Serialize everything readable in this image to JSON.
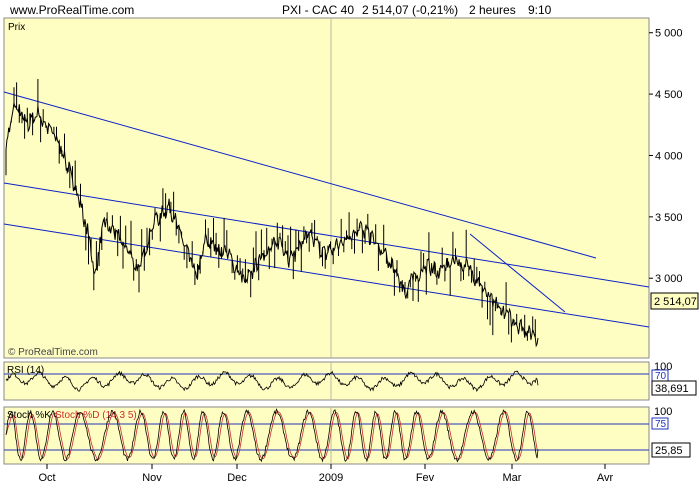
{
  "header": {
    "site": "www.ProRealTime.com",
    "title": "PXI - CAC 40",
    "quote": "2 514,07 (-0,21%)",
    "interval": "2 heures",
    "time": "9:10"
  },
  "colors": {
    "panel_bg": "#fffec2",
    "price_line": "#000000",
    "channel": "#0b22c8",
    "rsi": "#000000",
    "stoch_k": "#000000",
    "stoch_d": "#cc2b2b",
    "level_line": "#2233bb"
  },
  "main_panel": {
    "label": "Prix",
    "watermark": "© ProRealTime.com",
    "last_value_tag": "2 514,07",
    "y_ticks": [
      "5 000",
      "4 500",
      "4 000",
      "3 500",
      "3 000"
    ]
  },
  "rsi_panel": {
    "label": "RSI (14)",
    "scale_top": "100",
    "level_label": "70",
    "value_tag": "38,691"
  },
  "stoch_panel": {
    "label_k": "Stoch %K",
    "label_d": "Stoch %D (14 3 5)",
    "scale_top": "100",
    "level_label": "75",
    "value_tag": "25,85"
  },
  "x_axis": {
    "labels": [
      "Oct",
      "Nov",
      "Dec",
      "2009",
      "Fev",
      "Mar",
      "Avr"
    ]
  },
  "chart_data": [
    {
      "type": "line",
      "name": "Prix",
      "x_labels": [
        "Oct",
        "Nov",
        "Dec",
        "2009",
        "Fev",
        "Mar",
        "Avr"
      ],
      "y_ticks": [
        5000,
        4500,
        4000,
        3500,
        3000
      ],
      "ylim": [
        2350,
        5120
      ],
      "keypoints": [
        {
          "i": 0,
          "y": 4100
        },
        {
          "i": 10,
          "y": 4400
        },
        {
          "i": 25,
          "y": 4250
        },
        {
          "i": 35,
          "y": 4350
        },
        {
          "i": 60,
          "y": 4100
        },
        {
          "i": 80,
          "y": 3700
        },
        {
          "i": 95,
          "y": 3300
        },
        {
          "i": 100,
          "y": 3000
        },
        {
          "i": 110,
          "y": 3450
        },
        {
          "i": 125,
          "y": 3350
        },
        {
          "i": 140,
          "y": 3200
        },
        {
          "i": 150,
          "y": 3050
        },
        {
          "i": 165,
          "y": 3450
        },
        {
          "i": 185,
          "y": 3580
        },
        {
          "i": 205,
          "y": 3200
        },
        {
          "i": 215,
          "y": 3000
        },
        {
          "i": 225,
          "y": 3300
        },
        {
          "i": 250,
          "y": 3200
        },
        {
          "i": 270,
          "y": 2950
        },
        {
          "i": 290,
          "y": 3200
        },
        {
          "i": 310,
          "y": 3300
        },
        {
          "i": 320,
          "y": 3150
        },
        {
          "i": 340,
          "y": 3350
        },
        {
          "i": 360,
          "y": 3200
        },
        {
          "i": 380,
          "y": 3300
        },
        {
          "i": 398,
          "y": 3420
        },
        {
          "i": 410,
          "y": 3350
        },
        {
          "i": 425,
          "y": 3200
        },
        {
          "i": 440,
          "y": 3050
        },
        {
          "i": 450,
          "y": 2880
        },
        {
          "i": 458,
          "y": 3000
        },
        {
          "i": 475,
          "y": 3100
        },
        {
          "i": 490,
          "y": 3050
        },
        {
          "i": 505,
          "y": 3150
        },
        {
          "i": 520,
          "y": 3100
        },
        {
          "i": 535,
          "y": 2950
        },
        {
          "i": 550,
          "y": 2800
        },
        {
          "i": 565,
          "y": 2700
        },
        {
          "i": 575,
          "y": 2640
        },
        {
          "i": 585,
          "y": 2580
        },
        {
          "i": 592,
          "y": 2560
        },
        {
          "i": 600,
          "y": 2514.07
        }
      ],
      "last_value": 2514.07
    },
    {
      "type": "line",
      "name": "RSI (14)",
      "ylim": [
        0,
        100
      ],
      "level": 70
    },
    {
      "type": "line",
      "name": "Stoch %K / %D (14 3 5)",
      "ylim": [
        0,
        100
      ],
      "level": 75
    }
  ]
}
